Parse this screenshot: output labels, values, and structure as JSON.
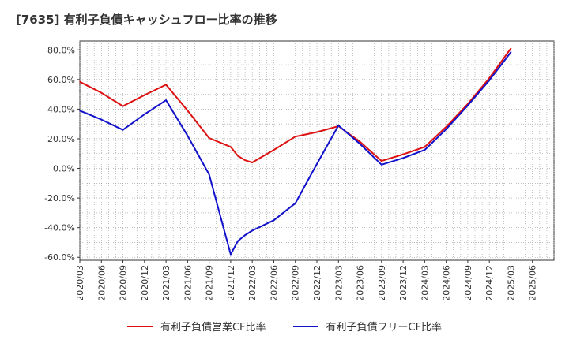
{
  "title": "[7635]  有利子負債キャッシュフロー比率の推移",
  "chart_data": {
    "type": "line",
    "ylim": [
      -62,
      86
    ],
    "y_ticks": [
      -60,
      -40,
      -20,
      0,
      20,
      40,
      60,
      80
    ],
    "y_tick_labels": [
      "-60.0%",
      "-40.0%",
      "-20.0%",
      "0.0%",
      "20.0%",
      "40.0%",
      "60.0%",
      "80.0%"
    ],
    "x_tick_labels": [
      "2020/03",
      "2020/06",
      "2020/09",
      "2020/12",
      "2021/03",
      "2021/06",
      "2021/09",
      "2021/12",
      "2022/03",
      "2022/06",
      "2022/09",
      "2022/12",
      "2023/03",
      "2023/06",
      "2023/09",
      "2023/12",
      "2024/03",
      "2024/06",
      "2024/09",
      "2024/12",
      "2025/03",
      "2025/06"
    ],
    "grid": true,
    "legend_position": "bottom",
    "series": [
      {
        "name": "有利子負債営業CF比率",
        "color": "#dd1111",
        "points": [
          [
            "2020/03",
            58.5
          ],
          [
            "2020/06",
            51
          ],
          [
            "2020/09",
            42
          ],
          [
            "2020/12",
            49.5
          ],
          [
            "2021/03",
            56.5
          ],
          [
            "2021/06",
            39
          ],
          [
            "2021/09",
            20.5
          ],
          [
            "2021/12",
            14.5
          ],
          [
            "2022/01",
            8.5
          ],
          [
            "2022/02",
            5.5
          ],
          [
            "2022/03",
            4
          ],
          [
            "2022/06",
            12.5
          ],
          [
            "2022/09",
            21.5
          ],
          [
            "2022/12",
            24.5
          ],
          [
            "2023/03",
            28.5
          ],
          [
            "2023/06",
            18
          ],
          [
            "2023/09",
            5
          ],
          [
            "2023/12",
            9.5
          ],
          [
            "2024/03",
            14.5
          ],
          [
            "2024/06",
            28
          ],
          [
            "2024/09",
            43.5
          ],
          [
            "2024/12",
            61
          ],
          [
            "2025/03",
            81
          ]
        ]
      },
      {
        "name": "有利子負債フリーCF比率",
        "color": "#1111cc",
        "points": [
          [
            "2020/03",
            39
          ],
          [
            "2020/06",
            33
          ],
          [
            "2020/09",
            26
          ],
          [
            "2020/12",
            36.5
          ],
          [
            "2021/03",
            46
          ],
          [
            "2021/06",
            22
          ],
          [
            "2021/09",
            -4
          ],
          [
            "2021/12",
            -58
          ],
          [
            "2022/01",
            -49
          ],
          [
            "2022/02",
            -45
          ],
          [
            "2022/03",
            -42
          ],
          [
            "2022/06",
            -35
          ],
          [
            "2022/09",
            -23.5
          ],
          [
            "2022/12",
            3
          ],
          [
            "2023/03",
            29
          ],
          [
            "2023/06",
            16.5
          ],
          [
            "2023/09",
            2.5
          ],
          [
            "2023/12",
            7
          ],
          [
            "2024/03",
            12.5
          ],
          [
            "2024/06",
            26.5
          ],
          [
            "2024/09",
            42.5
          ],
          [
            "2024/12",
            59.5
          ],
          [
            "2025/03",
            78.5
          ]
        ]
      }
    ]
  }
}
